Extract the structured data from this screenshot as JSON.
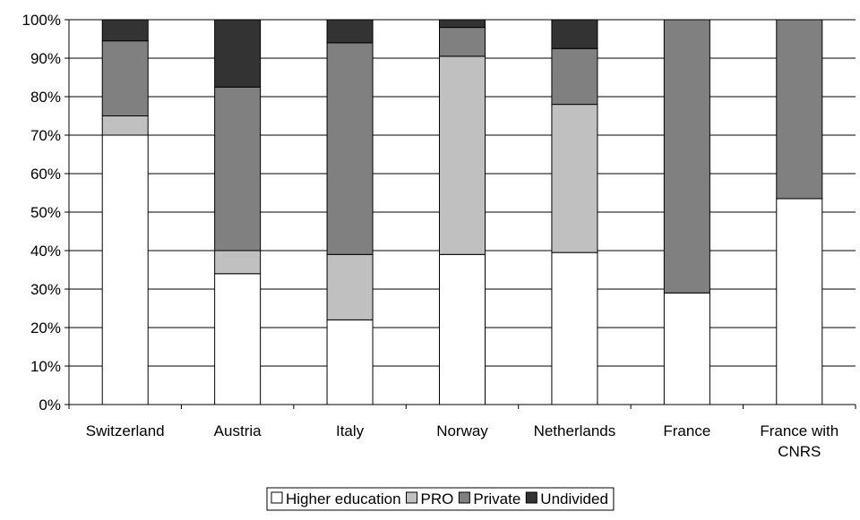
{
  "chart_data": {
    "type": "bar",
    "stacked": true,
    "normalized": true,
    "title": "",
    "xlabel": "",
    "ylabel": "",
    "ylim": [
      0,
      100
    ],
    "yticks": [
      "0%",
      "10%",
      "20%",
      "30%",
      "40%",
      "50%",
      "60%",
      "70%",
      "80%",
      "90%",
      "100%"
    ],
    "categories": [
      "Switzerland",
      "Austria",
      "Italy",
      "Norway",
      "Netherlands",
      "France",
      "France with CNRS"
    ],
    "category_lines": [
      [
        "Switzerland"
      ],
      [
        "Austria"
      ],
      [
        "Italy"
      ],
      [
        "Norway"
      ],
      [
        "Netherlands"
      ],
      [
        "France"
      ],
      [
        "France with",
        "CNRS"
      ]
    ],
    "series": [
      {
        "name": "Higher education",
        "color": "#ffffff",
        "values": [
          70,
          34,
          22,
          39,
          39.5,
          29,
          53.5
        ]
      },
      {
        "name": "PRO",
        "color": "#c0c0c0",
        "values": [
          5,
          6,
          17,
          51.5,
          38.5,
          0,
          0
        ]
      },
      {
        "name": "Private",
        "color": "#808080",
        "values": [
          19.5,
          42.5,
          55,
          7.5,
          14.5,
          71,
          46.5
        ]
      },
      {
        "name": "Undivided",
        "color": "#333333",
        "values": [
          5.5,
          17.5,
          6,
          2,
          7.5,
          0,
          0
        ]
      }
    ],
    "grid": true,
    "legend": "bottom-center"
  }
}
